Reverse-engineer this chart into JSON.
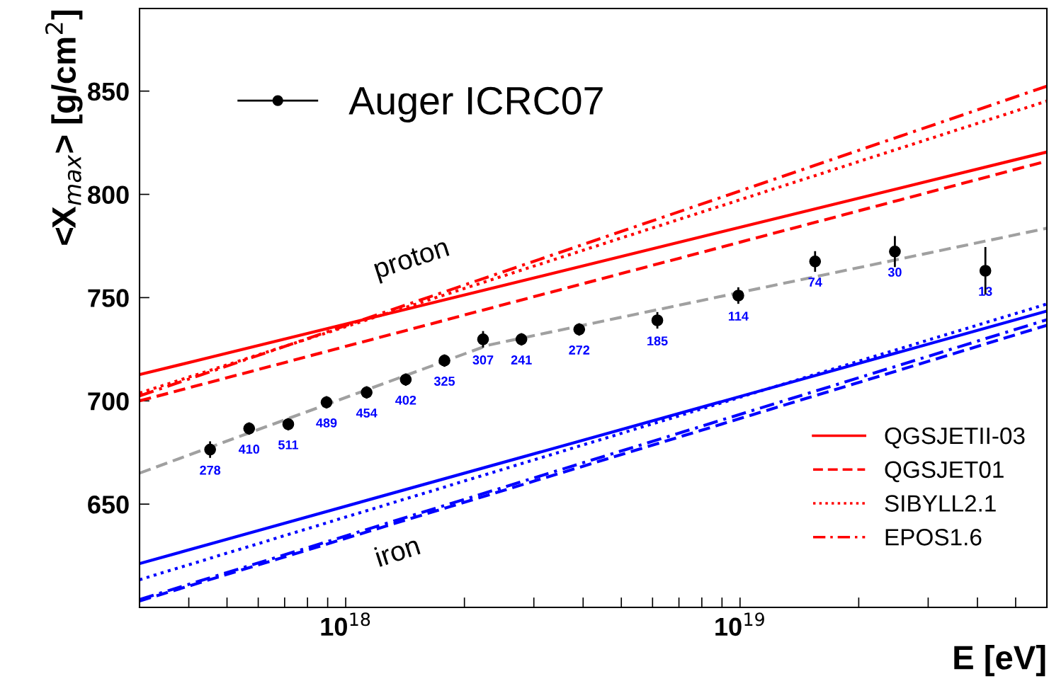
{
  "chart_data": {
    "type": "line",
    "xlabel": "E [eV]",
    "ylabel": "<X$_{max}$> [g/cm$^{2}$]",
    "log": "x",
    "grid": false,
    "legend": "bottom right",
    "xlim": [
      3e+17,
      6e+19
    ],
    "ylim": [
      600,
      890
    ],
    "xticks": [
      {
        "value": 1e+18,
        "label": "10$^{18}$"
      },
      {
        "value": 1e+19,
        "label": "10$^{19}$"
      }
    ],
    "yticks": [
      650,
      700,
      750,
      800,
      850
    ],
    "annotations": [
      "proton",
      "iron",
      {
        "text": "278",
        "x": 4.53e+17,
        "y": 676.4
      },
      {
        "text": "410",
        "x": 5.69e+17,
        "y": 686.6
      },
      {
        "text": "511",
        "x": 7.15e+17,
        "y": 688.7
      },
      {
        "text": "489",
        "x": 8.94e+17,
        "y": 699.3
      },
      {
        "text": "454",
        "x": 1.13e+18,
        "y": 704.1
      },
      {
        "text": "402",
        "x": 1.42e+18,
        "y": 710.3
      },
      {
        "text": "325",
        "x": 1.78e+18,
        "y": 719.5
      },
      {
        "text": "307",
        "x": 2.23e+18,
        "y": 729.8
      },
      {
        "text": "241",
        "x": 2.79e+18,
        "y": 729.8
      },
      {
        "text": "272",
        "x": 3.91e+18,
        "y": 734.6
      },
      {
        "text": "185",
        "x": 6.17e+18,
        "y": 739
      },
      {
        "text": "114",
        "x": 9.9e+18,
        "y": 751
      },
      {
        "text": "74",
        "x": 1.55e+19,
        "y": 767.5
      },
      {
        "text": "30",
        "x": 2.47e+19,
        "y": 772.3
      },
      {
        "text": "13",
        "x": 4.19e+19,
        "y": 763
      }
    ],
    "series": [
      {
        "name": "QGSJETII-03",
        "color": "#ff0000",
        "line_style": "solid",
        "x": [
          3e+17,
          6e+19
        ],
        "values": [
          712.7,
          820.5
        ]
      },
      {
        "name": "QGSJET01",
        "color": "#ff0000",
        "line_style": "dashed",
        "x": [
          3e+17,
          6e+19
        ],
        "values": [
          700,
          816.1
        ]
      },
      {
        "name": "SIBYLL2.1",
        "color": "#ff0000",
        "line_style": "dotted",
        "x": [
          3e+17,
          6e+19
        ],
        "values": [
          703.8,
          845.2
        ]
      },
      {
        "name": "EPOS1.6",
        "color": "#ff0000",
        "line_style": "dashdot",
        "x": [
          3e+17,
          6e+19
        ],
        "values": [
          702.4,
          852.4
        ]
      },
      {
        "color": "#0000ff",
        "line_style": "solid",
        "x": [
          3e+17,
          6e+19
        ],
        "values": [
          621.2,
          743.5
        ]
      },
      {
        "color": "#0000ff",
        "line_style": "dashed",
        "x": [
          3e+17,
          6e+19
        ],
        "values": [
          603.1,
          736.6
        ]
      },
      {
        "color": "#0000ff",
        "line_style": "dotted",
        "x": [
          3e+17,
          6e+19
        ],
        "values": [
          613.4,
          746.9
        ]
      },
      {
        "color": "#0000ff",
        "line_style": "dashdot",
        "x": [
          3e+17,
          6e+19
        ],
        "values": [
          603.8,
          739.3
        ]
      },
      {
        "color": "#a0a0a0",
        "line_style": "dashed",
        "x": [
          3e+17,
          2.3e+18,
          6e+19
        ],
        "values": [
          665,
          727,
          783.6
        ]
      },
      {
        "name": "Auger ICRC07",
        "type": "scatter",
        "marker": "circle",
        "color": "#000000",
        "x": [
          4.53e+17,
          5.69e+17,
          7.15e+17,
          8.94e+17,
          1.13e+18,
          1.42e+18,
          1.78e+18,
          2.23e+18,
          2.79e+18,
          3.91e+18,
          6.17e+18,
          9.9e+18,
          1.55e+19,
          2.47e+19,
          4.19e+19
        ],
        "values": [
          676.4,
          686.6,
          688.7,
          699.3,
          704.1,
          710.3,
          719.5,
          729.8,
          729.8,
          734.6,
          739,
          751,
          767.5,
          772.3,
          763
        ],
        "errors": [
          4,
          3,
          3,
          3,
          3,
          3,
          3,
          4,
          3,
          3,
          4,
          4,
          5,
          7.5,
          11.5
        ]
      }
    ]
  }
}
